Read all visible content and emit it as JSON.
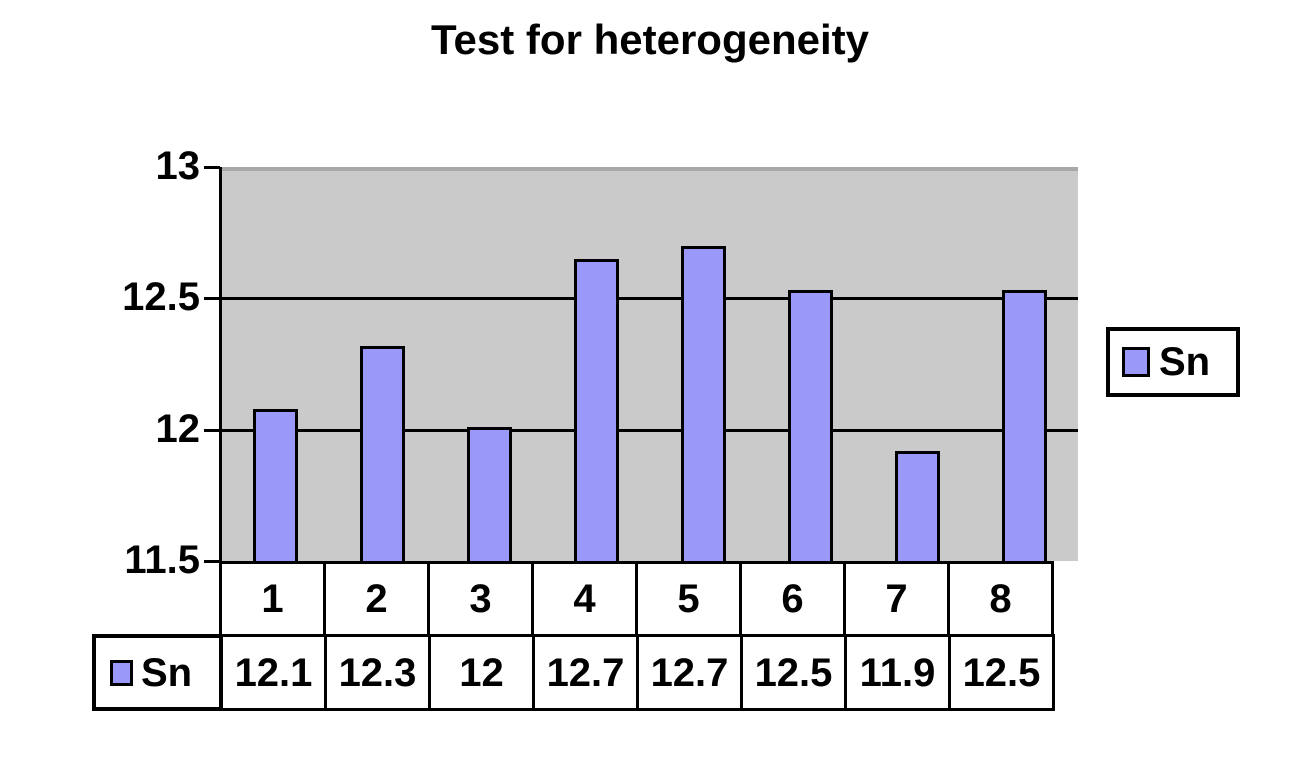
{
  "title": "Test for heterogeneity",
  "legend": {
    "label": "Sn"
  },
  "table": {
    "row_label": "Sn"
  },
  "colors": {
    "background": "#FFFFFF",
    "bar_fill": "#9A99FA",
    "bar_border": "#000000",
    "plot_bg": "#CACACA",
    "grid": "#000000",
    "text": "#000000"
  },
  "chart_data": {
    "type": "bar",
    "title": "Test for heterogeneity",
    "categories": [
      "1",
      "2",
      "3",
      "4",
      "5",
      "6",
      "7",
      "8"
    ],
    "series": [
      {
        "name": "Sn",
        "values": [
          12.08,
          12.32,
          12.01,
          12.65,
          12.7,
          12.53,
          11.92,
          12.53
        ],
        "table_values": [
          "12.1",
          "12.3",
          "12",
          "12.7",
          "12.7",
          "12.5",
          "11.9",
          "12.5"
        ]
      }
    ],
    "xlabel": "",
    "ylabel": "",
    "ylim": [
      11.5,
      13
    ],
    "yticks": [
      13,
      12.5,
      12,
      11.5
    ],
    "ytick_labels": [
      "13",
      "12.5",
      "12",
      "11.5"
    ],
    "gridlines": [
      12.5,
      12
    ],
    "grid": true,
    "legend_position": "right",
    "plot_area_bg": "#CACACA",
    "data_table_shown": true
  }
}
